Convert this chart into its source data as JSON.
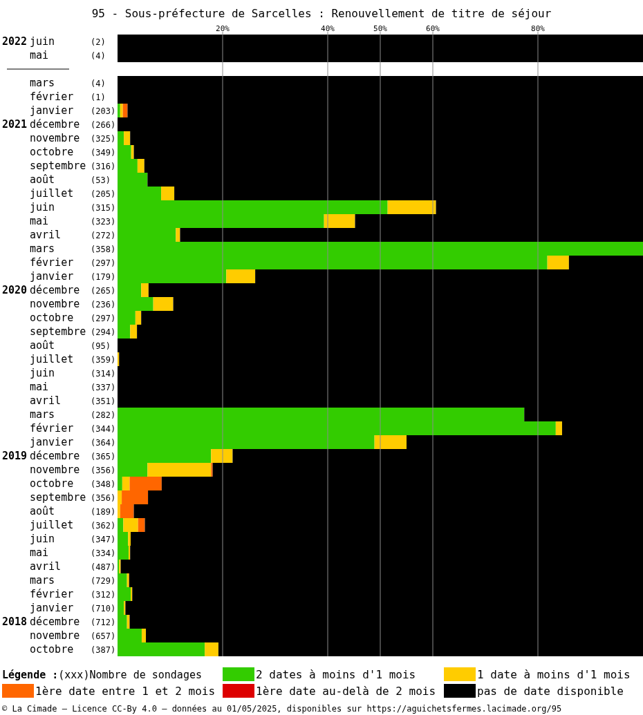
{
  "chart_data": {
    "type": "bar",
    "orientation": "horizontal",
    "stacked": true,
    "title": "95 - Sous-préfecture de Sarcelles : Renouvellement de titre de séjour",
    "categories": [
      "2022 juin (2)",
      "mai (4)",
      null,
      "mars (4)",
      "février (1)",
      "janvier (203)",
      "2021 décembre (266)",
      "novembre (325)",
      "octobre (349)",
      "septembre (316)",
      "août (53)",
      "juillet (205)",
      "juin (315)",
      "mai (323)",
      "avril (272)",
      "mars (358)",
      "février (297)",
      "janvier (179)",
      "2020 décembre (265)",
      "novembre (236)",
      "octobre (297)",
      "septembre (294)",
      "août (95)",
      "juillet (359)",
      "juin (314)",
      "mai (337)",
      "avril (351)",
      "mars (282)",
      "février (344)",
      "janvier (364)",
      "2019 décembre (365)",
      "novembre (356)",
      "octobre (348)",
      "septembre (356)",
      "août (189)",
      "juillet (362)",
      "juin (347)",
      "mai (334)",
      "avril (487)",
      "mars (729)",
      "février (312)",
      "janvier (710)",
      "2018 décembre (712)",
      "novembre (657)",
      "octobre (387)"
    ],
    "series": [
      {
        "name": "2 dates à moins d'1 mois",
        "color": "#33cc00",
        "values": [
          0,
          0,
          null,
          0,
          0,
          0.5,
          0,
          1.2,
          2.6,
          3.8,
          5.7,
          8.3,
          51.4,
          39.3,
          11.1,
          100,
          81.8,
          20.7,
          4.5,
          6.8,
          3.4,
          2.4,
          0,
          0,
          0,
          0,
          0,
          77.4,
          83.4,
          48.9,
          17.8,
          5.7,
          0.9,
          0,
          0,
          1.1,
          2.0,
          2.1,
          0.3,
          1.8,
          2.5,
          1.2,
          1.8,
          4.6,
          16.6
        ]
      },
      {
        "name": "1 date à moins d'1 mois",
        "color": "#ffcc00",
        "values": [
          0,
          0,
          null,
          0,
          0,
          0.5,
          0,
          1.2,
          0.5,
          1.3,
          0,
          2.5,
          9.2,
          5.9,
          0.8,
          0,
          4.1,
          5.5,
          1.4,
          3.8,
          1.1,
          1.3,
          0,
          0.3,
          0,
          0,
          0,
          0,
          1.2,
          6.1,
          4.1,
          12.1,
          1.4,
          0.8,
          0.5,
          2.8,
          0.5,
          0.3,
          0.3,
          0.4,
          0.3,
          0.3,
          0.5,
          0.8,
          2.6
        ]
      },
      {
        "name": "1ère date entre 1 et 2 mois",
        "color": "#ff6600",
        "values": [
          0,
          0,
          null,
          0,
          0,
          0.9,
          0,
          0,
          0,
          0,
          0,
          0,
          0,
          0,
          0,
          0,
          0,
          0,
          0,
          0,
          0,
          0,
          0,
          0,
          0,
          0,
          0,
          0,
          0,
          0,
          0,
          0.3,
          6.1,
          5.0,
          2.6,
          1.3,
          0,
          0,
          0,
          0,
          0,
          0,
          0,
          0,
          0
        ]
      },
      {
        "name": "1ère date au-delà de 2 mois",
        "color": "#dd0000",
        "values": [
          0,
          0,
          null,
          0,
          0,
          0,
          0,
          0,
          0,
          0,
          0,
          0,
          0,
          0,
          0,
          0,
          0,
          0,
          0,
          0,
          0,
          0,
          0,
          0,
          0,
          0,
          0,
          0,
          0,
          0,
          0,
          0,
          0,
          0,
          0,
          0,
          0,
          0,
          0,
          0,
          0,
          0,
          0,
          0,
          0
        ]
      },
      {
        "name": "pas de date disponible",
        "color": "#000000",
        "values": [
          100,
          100,
          null,
          100,
          100,
          98.1,
          100,
          97.6,
          96.9,
          94.9,
          94.3,
          89.2,
          39.4,
          54.8,
          88.1,
          0,
          14.1,
          73.8,
          94.1,
          89.4,
          95.5,
          96.3,
          100,
          99.7,
          100,
          100,
          100,
          22.6,
          15.4,
          45,
          78.1,
          81.9,
          91.6,
          94.2,
          96.9,
          94.8,
          97.5,
          97.6,
          99.4,
          97.8,
          97.2,
          98.5,
          97.7,
          94.6,
          80.8
        ]
      }
    ],
    "xlim": [
      0,
      100
    ],
    "xticks": [
      {
        "value": 20,
        "label": "20%"
      },
      {
        "value": 40,
        "label": "40%"
      },
      {
        "value": 50,
        "label": "50%"
      },
      {
        "value": 60,
        "label": "60%"
      },
      {
        "value": 80,
        "label": "80%"
      }
    ],
    "grid": "x",
    "legend": "bottom",
    "legend_title": "Légende :",
    "annotations": [
      "(xxx)Nombre de sondages",
      "© La Cimade – Licence CC-By 4.0 – données au 01/05/2025, disponibles sur https://aguichetsfermes.lacimade.org/95"
    ]
  }
}
